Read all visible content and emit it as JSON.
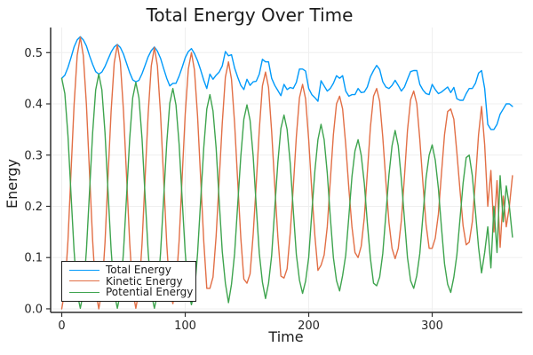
{
  "title": "Total Energy Over Time",
  "axes": {
    "xlabel": "Time",
    "ylabel": "Energy"
  },
  "colors": {
    "total": "#009AFA",
    "kinetic": "#E26F46",
    "potential": "#3EA44E",
    "grid": "#efefef",
    "spine": "#2f2f2f",
    "background": "#ffffff"
  },
  "chart_data": {
    "type": "line",
    "title": "Total Energy Over Time",
    "xlabel": "Time",
    "ylabel": "Energy",
    "xlim": [
      -9,
      373
    ],
    "ylim": [
      -0.007,
      0.549
    ],
    "x_ticks": [
      0,
      100,
      200,
      300
    ],
    "x_tick_labels": [
      "0",
      "100",
      "200",
      "300"
    ],
    "y_ticks": [
      0.0,
      0.1,
      0.2,
      0.3,
      0.4,
      0.5
    ],
    "y_tick_labels": [
      "0.0",
      "0.1",
      "0.2",
      "0.3",
      "0.4",
      "0.5"
    ],
    "grid": true,
    "legend_position": "bottom-left",
    "x": [
      0,
      2.5,
      5,
      7.5,
      10,
      12.5,
      15,
      17.5,
      20,
      22.5,
      25,
      27.5,
      30,
      32.5,
      35,
      37.5,
      40,
      42.5,
      45,
      47.5,
      50,
      52.5,
      55,
      57.5,
      60,
      62.5,
      65,
      67.5,
      70,
      72.5,
      75,
      77.5,
      80,
      82.5,
      85,
      87.5,
      90,
      92.5,
      95,
      97.5,
      100,
      102.5,
      105,
      107.5,
      110,
      112.5,
      115,
      117.5,
      120,
      122.5,
      125,
      127.5,
      130,
      132.5,
      135,
      137.5,
      140,
      142.5,
      145,
      147.5,
      150,
      152.5,
      155,
      157.5,
      160,
      162.5,
      165,
      167.5,
      170,
      172.5,
      175,
      177.5,
      180,
      182.5,
      185,
      187.5,
      190,
      192.5,
      195,
      197.5,
      200,
      202.5,
      205,
      207.5,
      210,
      212.5,
      215,
      217.5,
      220,
      222.5,
      225,
      227.5,
      230,
      232.5,
      235,
      237.5,
      240,
      242.5,
      245,
      247.5,
      250,
      252.5,
      255,
      257.5,
      260,
      262.5,
      265,
      267.5,
      270,
      272.5,
      275,
      277.5,
      280,
      282.5,
      285,
      287.5,
      290,
      292.5,
      295,
      297.5,
      300,
      302.5,
      305,
      307.5,
      310,
      312.5,
      315,
      317.5,
      320,
      322.5,
      325,
      327.5,
      330,
      332.5,
      335,
      337.5,
      340,
      342.5,
      345,
      347.5,
      350,
      352.5,
      355,
      357.5,
      360,
      362.5,
      365
    ],
    "series": [
      {
        "name": "Total Energy",
        "color": "#009AFA",
        "values": [
          0.45,
          0.456,
          0.471,
          0.49,
          0.511,
          0.525,
          0.531,
          0.525,
          0.513,
          0.494,
          0.477,
          0.463,
          0.458,
          0.462,
          0.473,
          0.487,
          0.501,
          0.511,
          0.516,
          0.51,
          0.497,
          0.479,
          0.461,
          0.447,
          0.443,
          0.446,
          0.459,
          0.475,
          0.492,
          0.504,
          0.511,
          0.503,
          0.489,
          0.469,
          0.45,
          0.435,
          0.44,
          0.44,
          0.454,
          0.471,
          0.49,
          0.502,
          0.508,
          0.498,
          0.484,
          0.466,
          0.446,
          0.43,
          0.458,
          0.448,
          0.456,
          0.462,
          0.474,
          0.502,
          0.494,
          0.496,
          0.47,
          0.452,
          0.436,
          0.428,
          0.448,
          0.436,
          0.443,
          0.444,
          0.458,
          0.487,
          0.482,
          0.482,
          0.45,
          0.436,
          0.426,
          0.416,
          0.438,
          0.428,
          0.432,
          0.43,
          0.442,
          0.468,
          0.468,
          0.464,
          0.43,
          0.418,
          0.412,
          0.405,
          0.445,
          0.435,
          0.425,
          0.43,
          0.44,
          0.455,
          0.45,
          0.455,
          0.425,
          0.415,
          0.418,
          0.418,
          0.43,
          0.422,
          0.423,
          0.433,
          0.453,
          0.465,
          0.475,
          0.467,
          0.443,
          0.433,
          0.43,
          0.436,
          0.446,
          0.436,
          0.425,
          0.433,
          0.448,
          0.463,
          0.465,
          0.465,
          0.438,
          0.427,
          0.42,
          0.418,
          0.438,
          0.428,
          0.42,
          0.423,
          0.428,
          0.433,
          0.422,
          0.432,
          0.41,
          0.407,
          0.407,
          0.42,
          0.43,
          0.43,
          0.44,
          0.46,
          0.465,
          0.43,
          0.36,
          0.35,
          0.35,
          0.36,
          0.38,
          0.39,
          0.4,
          0.4,
          0.395
        ]
      },
      {
        "name": "Kinetic Energy",
        "color": "#E26F46",
        "values": [
          0.0,
          0.036,
          0.133,
          0.265,
          0.398,
          0.495,
          0.53,
          0.494,
          0.398,
          0.265,
          0.133,
          0.036,
          0.0,
          0.035,
          0.129,
          0.258,
          0.386,
          0.48,
          0.515,
          0.48,
          0.386,
          0.258,
          0.129,
          0.035,
          0.001,
          0.034,
          0.127,
          0.254,
          0.381,
          0.474,
          0.51,
          0.474,
          0.381,
          0.254,
          0.127,
          0.034,
          0.01,
          0.042,
          0.132,
          0.255,
          0.38,
          0.468,
          0.5,
          0.466,
          0.376,
          0.254,
          0.131,
          0.04,
          0.04,
          0.062,
          0.142,
          0.25,
          0.362,
          0.452,
          0.482,
          0.448,
          0.362,
          0.248,
          0.138,
          0.058,
          0.05,
          0.068,
          0.145,
          0.242,
          0.35,
          0.435,
          0.462,
          0.432,
          0.346,
          0.24,
          0.14,
          0.064,
          0.06,
          0.078,
          0.148,
          0.236,
          0.336,
          0.412,
          0.438,
          0.41,
          0.33,
          0.23,
          0.142,
          0.075,
          0.085,
          0.105,
          0.16,
          0.25,
          0.34,
          0.4,
          0.415,
          0.39,
          0.32,
          0.235,
          0.16,
          0.11,
          0.1,
          0.122,
          0.178,
          0.265,
          0.355,
          0.415,
          0.43,
          0.405,
          0.335,
          0.248,
          0.168,
          0.118,
          0.098,
          0.118,
          0.172,
          0.258,
          0.348,
          0.408,
          0.425,
          0.4,
          0.33,
          0.245,
          0.165,
          0.118,
          0.118,
          0.138,
          0.185,
          0.265,
          0.34,
          0.385,
          0.39,
          0.37,
          0.305,
          0.232,
          0.162,
          0.125,
          0.13,
          0.17,
          0.25,
          0.34,
          0.395,
          0.32,
          0.2,
          0.27,
          0.15,
          0.25,
          0.12,
          0.22,
          0.16,
          0.2,
          0.26
        ]
      },
      {
        "name": "Potential Energy",
        "color": "#3EA44E",
        "values": [
          0.45,
          0.42,
          0.338,
          0.225,
          0.113,
          0.03,
          0.001,
          0.031,
          0.115,
          0.229,
          0.344,
          0.427,
          0.458,
          0.427,
          0.344,
          0.229,
          0.115,
          0.031,
          0.001,
          0.03,
          0.111,
          0.221,
          0.332,
          0.412,
          0.442,
          0.412,
          0.332,
          0.221,
          0.111,
          0.03,
          0.001,
          0.029,
          0.108,
          0.215,
          0.323,
          0.401,
          0.43,
          0.398,
          0.322,
          0.216,
          0.11,
          0.034,
          0.008,
          0.032,
          0.108,
          0.212,
          0.315,
          0.39,
          0.418,
          0.386,
          0.314,
          0.212,
          0.112,
          0.05,
          0.012,
          0.048,
          0.108,
          0.204,
          0.298,
          0.37,
          0.398,
          0.368,
          0.298,
          0.202,
          0.108,
          0.052,
          0.02,
          0.05,
          0.104,
          0.196,
          0.286,
          0.352,
          0.378,
          0.35,
          0.284,
          0.194,
          0.106,
          0.056,
          0.03,
          0.054,
          0.1,
          0.188,
          0.27,
          0.33,
          0.36,
          0.33,
          0.265,
          0.18,
          0.1,
          0.055,
          0.035,
          0.065,
          0.105,
          0.18,
          0.258,
          0.308,
          0.33,
          0.3,
          0.245,
          0.168,
          0.098,
          0.05,
          0.045,
          0.062,
          0.108,
          0.185,
          0.262,
          0.318,
          0.348,
          0.318,
          0.253,
          0.175,
          0.1,
          0.055,
          0.04,
          0.065,
          0.108,
          0.182,
          0.255,
          0.3,
          0.32,
          0.29,
          0.235,
          0.158,
          0.088,
          0.048,
          0.032,
          0.062,
          0.105,
          0.175,
          0.245,
          0.295,
          0.3,
          0.26,
          0.19,
          0.12,
          0.07,
          0.11,
          0.16,
          0.08,
          0.2,
          0.11,
          0.26,
          0.17,
          0.24,
          0.2,
          0.14
        ]
      }
    ]
  }
}
